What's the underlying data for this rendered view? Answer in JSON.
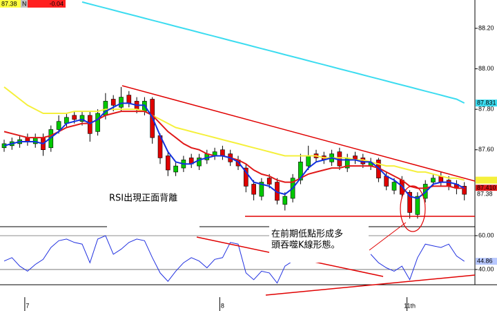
{
  "header": {
    "flag": "N",
    "change": -0.04
  },
  "annotations": [
    "RSI出現正面背離",
    "在前期低點形成多",
    "頭吞噬K線形態。"
  ],
  "chart_data": [
    {
      "type": "candlestick",
      "open": [
        87.61,
        87.62,
        87.63,
        87.66,
        87.63,
        87.66,
        87.61,
        87.7,
        87.73,
        87.77,
        87.74,
        87.77,
        87.69,
        87.77,
        87.85,
        87.81,
        87.87,
        87.84,
        87.79,
        87.85,
        87.67,
        87.57,
        87.49,
        87.51,
        87.56,
        87.52,
        87.55,
        87.57,
        87.6,
        87.58,
        87.55,
        87.51,
        87.43,
        87.37,
        87.46,
        87.44,
        87.33,
        87.36,
        87.45,
        87.52,
        87.58,
        87.57,
        87.54,
        87.59,
        87.51,
        87.57,
        87.56,
        87.52,
        87.55,
        87.47,
        87.4,
        87.45,
        87.39,
        87.28,
        87.36,
        87.44,
        87.47,
        87.45,
        87.43,
        87.42
      ],
      "high": [
        87.65,
        87.66,
        87.67,
        87.68,
        87.68,
        87.68,
        87.72,
        87.77,
        87.78,
        87.79,
        87.79,
        87.79,
        87.8,
        87.88,
        87.87,
        87.91,
        87.89,
        87.86,
        87.86,
        87.86,
        87.68,
        87.59,
        87.54,
        87.57,
        87.58,
        87.58,
        87.6,
        87.61,
        87.62,
        87.6,
        87.57,
        87.53,
        87.45,
        87.46,
        87.48,
        87.46,
        87.39,
        87.48,
        87.58,
        87.62,
        87.6,
        87.59,
        87.6,
        87.61,
        87.58,
        87.59,
        87.58,
        87.56,
        87.56,
        87.49,
        87.46,
        87.47,
        87.4,
        87.39,
        87.45,
        87.48,
        87.49,
        87.47,
        87.45,
        87.44
      ],
      "low": [
        87.59,
        87.6,
        87.61,
        87.62,
        87.61,
        87.57,
        87.59,
        87.68,
        87.71,
        87.73,
        87.72,
        87.64,
        87.67,
        87.75,
        87.79,
        87.79,
        87.81,
        87.78,
        87.77,
        87.63,
        87.53,
        87.47,
        87.47,
        87.49,
        87.51,
        87.5,
        87.53,
        87.55,
        87.55,
        87.52,
        87.5,
        87.39,
        87.35,
        87.35,
        87.41,
        87.33,
        87.3,
        87.34,
        87.43,
        87.5,
        87.54,
        87.53,
        87.52,
        87.5,
        87.49,
        87.53,
        87.51,
        87.5,
        87.44,
        87.4,
        87.38,
        87.36,
        87.26,
        87.26,
        87.34,
        87.42,
        87.42,
        87.4,
        87.38,
        87.35
      ],
      "close": [
        87.63,
        87.64,
        87.65,
        87.64,
        87.66,
        87.6,
        87.7,
        87.74,
        87.76,
        87.75,
        87.77,
        87.68,
        87.78,
        87.84,
        87.82,
        87.86,
        87.83,
        87.8,
        87.84,
        87.66,
        87.56,
        87.5,
        87.52,
        87.55,
        87.53,
        87.56,
        87.58,
        87.59,
        87.57,
        87.54,
        87.52,
        87.42,
        87.38,
        87.44,
        87.43,
        87.35,
        87.37,
        87.46,
        87.54,
        87.57,
        87.56,
        87.55,
        87.58,
        87.52,
        87.56,
        87.55,
        87.53,
        87.54,
        87.46,
        87.42,
        87.44,
        87.38,
        87.29,
        87.37,
        87.43,
        87.46,
        87.44,
        87.42,
        87.41,
        87.38
      ],
      "up_color": "#00c800",
      "down_color": "#e00000",
      "lines": [
        {
          "color": "#3cdcf0",
          "tag": true,
          "last_label": "87.831",
          "values": [
            null,
            null,
            null,
            null,
            null,
            null,
            null,
            null,
            null,
            null,
            88.33,
            88.32,
            88.31,
            88.3,
            88.29,
            88.28,
            88.27,
            88.26,
            88.25,
            88.24,
            88.23,
            88.22,
            88.21,
            88.2,
            88.19,
            88.18,
            88.17,
            88.16,
            88.15,
            88.14,
            88.13,
            88.12,
            88.11,
            88.1,
            88.09,
            88.08,
            88.07,
            88.06,
            88.05,
            88.04,
            88.03,
            88.02,
            88.01,
            88.0,
            87.99,
            87.98,
            87.97,
            87.96,
            87.95,
            87.94,
            87.93,
            87.92,
            87.91,
            87.9,
            87.89,
            87.88,
            87.87,
            87.86,
            87.85,
            87.831
          ]
        },
        {
          "color": "#f5f03c",
          "tag": true,
          "values": [
            87.91,
            87.88,
            87.85,
            87.82,
            87.8,
            87.78,
            87.78,
            87.78,
            87.78,
            87.79,
            87.79,
            87.79,
            87.79,
            87.8,
            87.8,
            87.8,
            87.8,
            87.8,
            87.79,
            87.77,
            87.75,
            87.73,
            87.71,
            87.7,
            87.69,
            87.68,
            87.67,
            87.66,
            87.65,
            87.64,
            87.63,
            87.62,
            87.61,
            87.6,
            87.59,
            87.58,
            87.57,
            87.57,
            87.57,
            87.57,
            87.57,
            87.56,
            87.56,
            87.56,
            87.56,
            87.55,
            87.55,
            87.54,
            87.53,
            87.52,
            87.52,
            87.51,
            87.5,
            87.49,
            87.49,
            87.48,
            87.47,
            87.46,
            87.46,
            87.45
          ]
        },
        {
          "color": "#e01818",
          "tag": true,
          "last_label": "87.410",
          "values": [
            87.69,
            87.68,
            87.67,
            87.66,
            87.66,
            87.66,
            87.67,
            87.69,
            87.71,
            87.72,
            87.73,
            87.73,
            87.75,
            87.77,
            87.78,
            87.79,
            87.79,
            87.79,
            87.79,
            87.77,
            87.73,
            87.69,
            87.66,
            87.63,
            87.61,
            87.6,
            87.58,
            87.57,
            87.57,
            87.56,
            87.55,
            87.53,
            87.5,
            87.48,
            87.47,
            87.45,
            87.44,
            87.44,
            87.46,
            87.48,
            87.49,
            87.5,
            87.51,
            87.51,
            87.52,
            87.52,
            87.52,
            87.52,
            87.51,
            87.49,
            87.47,
            87.45,
            87.42,
            87.41,
            87.41,
            87.42,
            87.42,
            87.42,
            87.41,
            87.41
          ]
        },
        {
          "color": "#1030e0",
          "tag": false,
          "values": [
            87.62,
            87.63,
            87.64,
            87.64,
            87.64,
            87.63,
            87.66,
            87.69,
            87.73,
            87.74,
            87.75,
            87.73,
            87.75,
            87.79,
            87.81,
            87.83,
            87.83,
            87.82,
            87.82,
            87.76,
            87.67,
            87.59,
            87.54,
            87.53,
            87.53,
            87.55,
            87.56,
            87.57,
            87.57,
            87.56,
            87.54,
            87.49,
            87.44,
            87.43,
            87.42,
            87.39,
            87.38,
            87.41,
            87.46,
            87.51,
            87.54,
            87.55,
            87.56,
            87.55,
            87.55,
            87.55,
            87.54,
            87.54,
            87.51,
            87.47,
            87.45,
            87.42,
            87.37,
            87.36,
            87.39,
            87.43,
            87.44,
            87.44,
            87.43,
            87.41
          ]
        }
      ],
      "ylim": [
        87.22,
        88.34
      ],
      "yticks": [
        {
          "value": 87.6,
          "label": "87.60"
        },
        {
          "value": 87.8,
          "label": "87.80"
        },
        {
          "value": 88.0,
          "label": "88.00"
        },
        {
          "value": 88.2,
          "label": "88.20"
        }
      ],
      "grid": false
    },
    {
      "type": "line",
      "categories": [
        null,
        null,
        null,
        "7",
        null,
        null,
        null,
        null,
        null,
        null,
        null,
        null,
        null,
        null,
        null,
        null,
        null,
        null,
        null,
        null,
        null,
        null,
        null,
        null,
        null,
        null,
        null,
        null,
        "8",
        null,
        null,
        null,
        null,
        null,
        null,
        null,
        null,
        null,
        null,
        null,
        null,
        null,
        null,
        null,
        null,
        null,
        null,
        null,
        null,
        null,
        null,
        null,
        "11th",
        null,
        null,
        null,
        null,
        null,
        null,
        null
      ],
      "values": [
        45,
        47,
        42,
        39,
        43,
        46,
        53,
        57,
        58,
        56,
        55,
        44,
        58,
        60,
        49,
        52,
        56,
        58,
        57,
        47,
        38,
        33,
        39,
        44,
        47,
        45,
        41,
        46,
        47,
        56,
        55,
        38,
        34,
        39,
        38,
        32,
        42,
        45,
        null,
        null,
        null,
        null,
        null,
        null,
        null,
        null,
        null,
        49,
        44,
        41,
        39,
        42,
        34,
        47,
        55,
        54,
        53,
        55,
        48,
        44.86
      ],
      "color": "#2030e0",
      "ylim": [
        31,
        65.3
      ],
      "yticks": [
        {
          "value": 40,
          "label": "40.00"
        },
        {
          "value": 60,
          "label": "60.00"
        }
      ],
      "grid": true
    }
  ]
}
